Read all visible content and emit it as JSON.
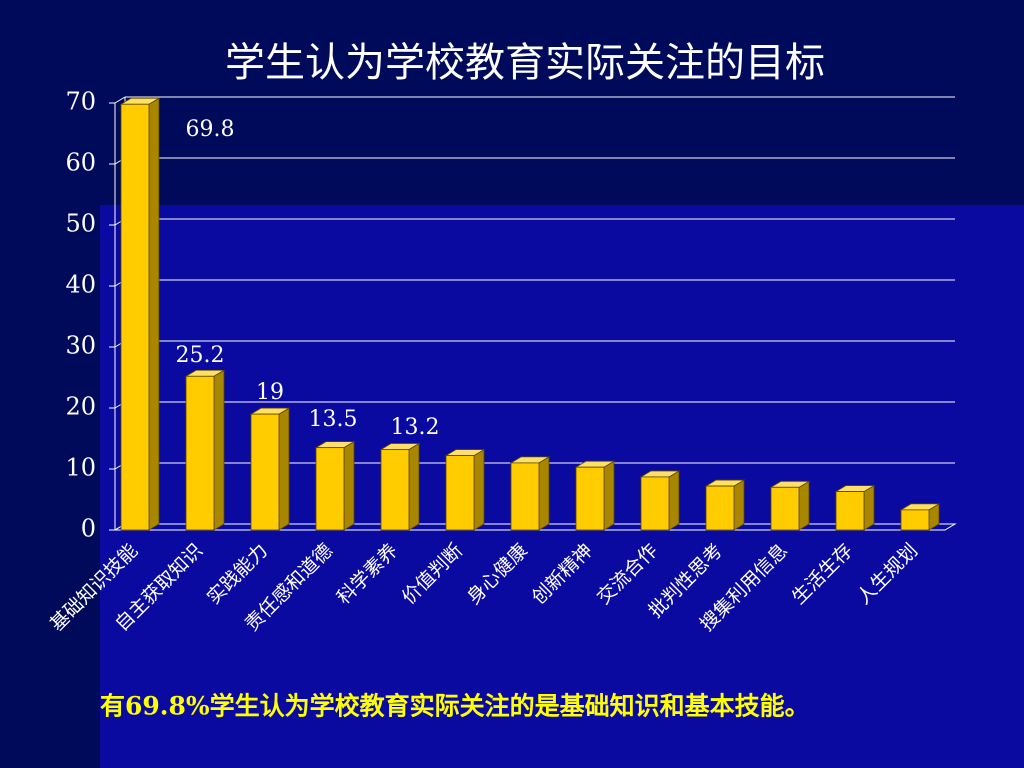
{
  "chart_data": {
    "type": "bar3d",
    "title": "学生认为学校教育实际关注的目标",
    "categories": [
      "基础知识技能",
      "自主获取知识",
      "实践能力",
      "责任感和道德",
      "科学素养",
      "价值判断",
      "身心健康",
      "创新精神",
      "交流合作",
      "批判性思考",
      "搜集利用信息",
      "生活生存",
      "人生规划"
    ],
    "values": [
      69.8,
      25.2,
      19,
      13.5,
      13.2,
      12.2,
      11,
      10.3,
      8.7,
      7.2,
      7,
      6.3,
      3.3
    ],
    "value_labels": [
      "69.8",
      "25.2",
      "19",
      "13.5",
      "13.2",
      null,
      null,
      null,
      null,
      null,
      null,
      null,
      null
    ],
    "color": "#ffcc00",
    "ylim": [
      0,
      70
    ],
    "yticks": [
      0,
      10,
      20,
      30,
      40,
      50,
      60,
      70
    ],
    "grid": true,
    "note": "有69.8%学生认为学校教育实际关注的是基础知识和基本技能。"
  }
}
